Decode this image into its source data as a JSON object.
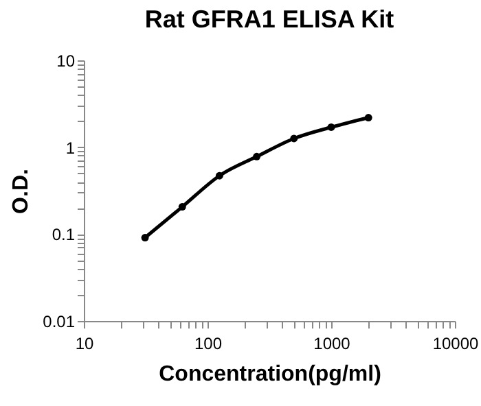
{
  "chart_data": {
    "type": "line",
    "title": "Rat GFRA1 ELISA Kit",
    "xlabel": "Concentration(pg/ml)",
    "ylabel": "O.D.",
    "x": [
      31.25,
      62.5,
      125,
      250,
      500,
      1000,
      2000
    ],
    "series": [
      {
        "color": "#000000",
        "values": [
          0.091,
          0.206,
          0.47,
          0.78,
          1.26,
          1.7,
          2.19
        ]
      }
    ],
    "log": "xy",
    "marker": "circle",
    "line_style": "solid",
    "grid": false,
    "legend": false,
    "xlim": [
      10,
      10000
    ],
    "ylim": [
      0.01,
      10
    ],
    "xticks": [
      10,
      {
        "value": 20,
        "label": null
      },
      {
        "value": 30,
        "label": null
      },
      {
        "value": 40,
        "label": null
      },
      {
        "value": 50,
        "label": null
      },
      {
        "value": 60,
        "label": null
      },
      {
        "value": 70,
        "label": null
      },
      {
        "value": 80,
        "label": null
      },
      {
        "value": 90,
        "label": null
      },
      100,
      {
        "value": 200,
        "label": null
      },
      {
        "value": 300,
        "label": null
      },
      {
        "value": 400,
        "label": null
      },
      {
        "value": 500,
        "label": null
      },
      {
        "value": 600,
        "label": null
      },
      {
        "value": 700,
        "label": null
      },
      {
        "value": 800,
        "label": null
      },
      {
        "value": 900,
        "label": null
      },
      1000,
      {
        "value": 2000,
        "label": null
      },
      {
        "value": 3000,
        "label": null
      },
      {
        "value": 4000,
        "label": null
      },
      {
        "value": 5000,
        "label": null
      },
      {
        "value": 6000,
        "label": null
      },
      {
        "value": 7000,
        "label": null
      },
      {
        "value": 8000,
        "label": null
      },
      {
        "value": 9000,
        "label": null
      },
      10000
    ],
    "yticks": [
      0.01,
      {
        "value": 0.02,
        "label": null
      },
      {
        "value": 0.03,
        "label": null
      },
      {
        "value": 0.04,
        "label": null
      },
      {
        "value": 0.05,
        "label": null
      },
      {
        "value": 0.06,
        "label": null
      },
      {
        "value": 0.07,
        "label": null
      },
      {
        "value": 0.08,
        "label": null
      },
      {
        "value": 0.09,
        "label": null
      },
      0.1,
      {
        "value": 0.2,
        "label": null
      },
      {
        "value": 0.3,
        "label": null
      },
      {
        "value": 0.4,
        "label": null
      },
      {
        "value": 0.5,
        "label": null
      },
      {
        "value": 0.6,
        "label": null
      },
      {
        "value": 0.7,
        "label": null
      },
      {
        "value": 0.8,
        "label": null
      },
      {
        "value": 0.9,
        "label": null
      },
      1,
      {
        "value": 2,
        "label": null
      },
      {
        "value": 3,
        "label": null
      },
      {
        "value": 4,
        "label": null
      },
      {
        "value": 5,
        "label": null
      },
      {
        "value": 6,
        "label": null
      },
      {
        "value": 7,
        "label": null
      },
      {
        "value": 8,
        "label": null
      },
      {
        "value": 9,
        "label": null
      },
      10
    ]
  }
}
